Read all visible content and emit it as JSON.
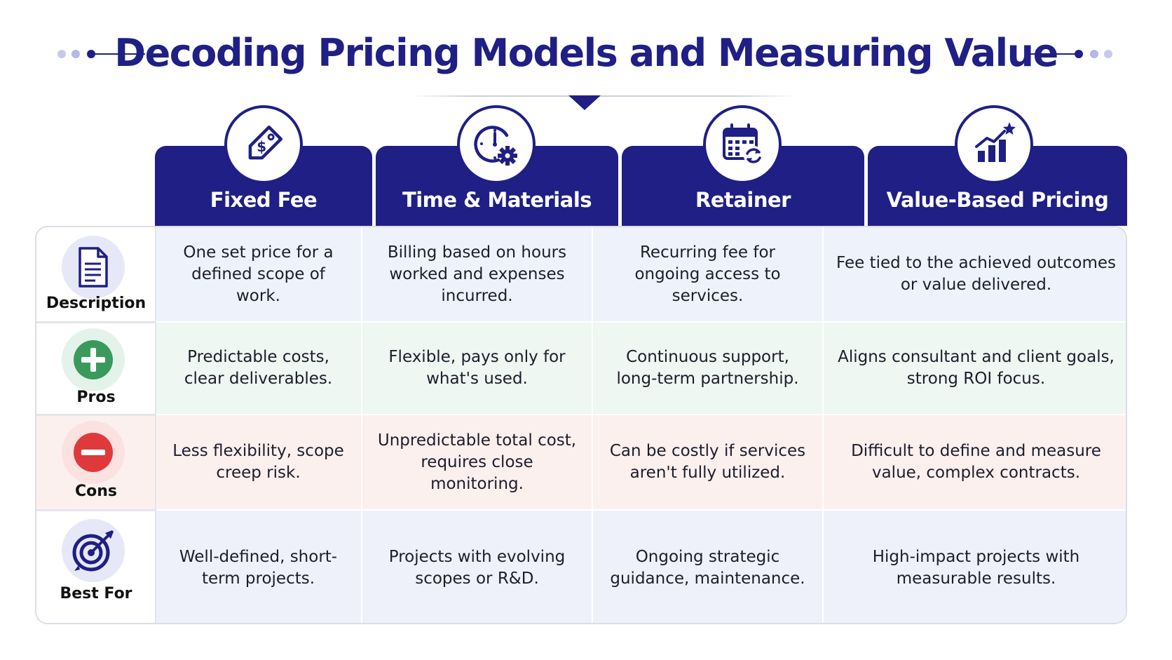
{
  "title": "Decoding Pricing Models and Measuring Value",
  "columns": [
    {
      "label": "Fixed Fee",
      "icon": "price-tag-icon"
    },
    {
      "label": "Time & Materials",
      "icon": "clock-gear-icon"
    },
    {
      "label": "Retainer",
      "icon": "calendar-refresh-icon"
    },
    {
      "label": "Value-Based Pricing",
      "icon": "growth-chart-icon"
    }
  ],
  "rows": [
    {
      "label": "Description",
      "icon": "document-icon",
      "bg": "#eef2fb",
      "cells": [
        "One set price for a defined scope of work.",
        "Billing based on hours worked and expenses incurred.",
        "Recurring fee for ongoing access to services.",
        "Fee tied to the achieved outcomes or value delivered."
      ]
    },
    {
      "label": "Pros",
      "icon": "plus-icon",
      "bg": "#eef7f1",
      "cells": [
        "Predictable costs, clear deliverables.",
        "Flexible, pays only for what's used.",
        "Continuous support, long-term partnership.",
        "Aligns consultant and client goals, strong ROI focus."
      ]
    },
    {
      "label": "Cons",
      "icon": "minus-icon",
      "bg": "#fcf0ef",
      "cells": [
        "Less flexibility, scope creep risk.",
        "Unpredictable total cost, requires close monitoring.",
        "Can be costly if services aren't fully utilized.",
        "Difficult to define and measure value, complex contracts."
      ]
    },
    {
      "label": "Best For",
      "icon": "target-icon",
      "bg": "#eef1fa",
      "cells": [
        "Well-defined, short-term projects.",
        "Projects with evolving scopes or R&D.",
        "Ongoing strategic guidance, maintenance.",
        "High-impact projects with measurable results."
      ]
    }
  ],
  "colors": {
    "navy": "#1f1f85",
    "pros_green": "#3a9a5b",
    "cons_red": "#e0393b"
  }
}
